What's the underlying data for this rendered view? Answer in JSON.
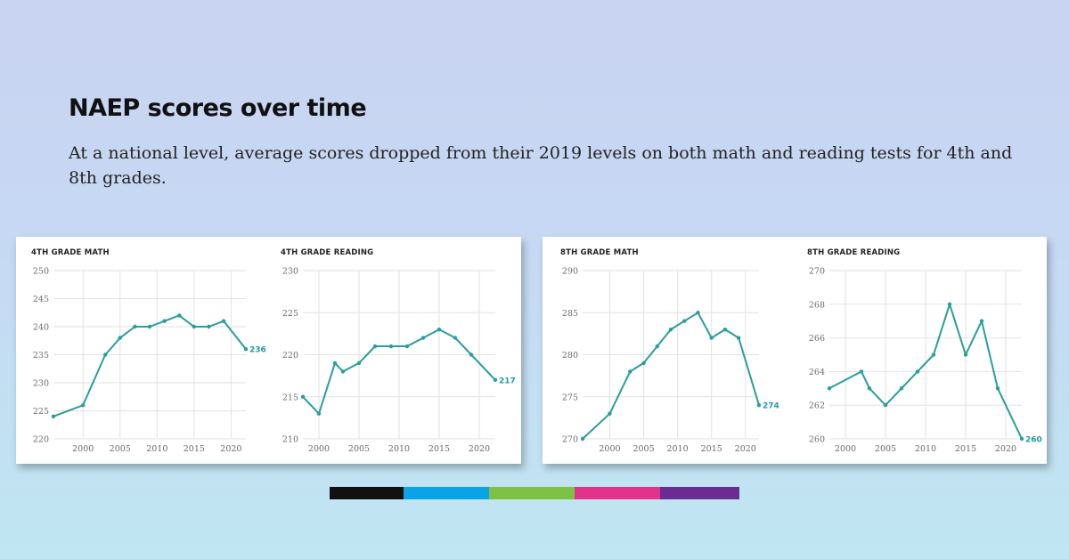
{
  "header": {
    "title": "NAEP scores over time",
    "subtitle": "At a national level, average scores dropped from their 2019 levels on both math and reading tests for 4th and 8th grades."
  },
  "colors": {
    "line": "#2a9d9e",
    "end_label": "#229b9b",
    "bar_segments": [
      "#111111",
      "#0aa4e6",
      "#7dc242",
      "#e2338c",
      "#6a2c91"
    ]
  },
  "chart_data": [
    {
      "type": "line",
      "title": "4TH GRADE MATH",
      "x": [
        1996,
        2000,
        2003,
        2005,
        2007,
        2009,
        2011,
        2013,
        2015,
        2017,
        2019,
        2022
      ],
      "values": [
        224,
        226,
        235,
        238,
        240,
        240,
        241,
        242,
        240,
        240,
        241,
        236
      ],
      "xlim": [
        1996,
        2022
      ],
      "ylim": [
        220,
        250
      ],
      "xticks": [
        2000,
        2005,
        2010,
        2015,
        2020
      ],
      "yticks": [
        220,
        225,
        230,
        235,
        240,
        245,
        250
      ],
      "end_label": "236",
      "grid": true
    },
    {
      "type": "line",
      "title": "4TH GRADE READING",
      "x": [
        1998,
        2000,
        2002,
        2003,
        2005,
        2007,
        2009,
        2011,
        2013,
        2015,
        2017,
        2019,
        2022
      ],
      "values": [
        215,
        213,
        219,
        218,
        219,
        221,
        221,
        221,
        222,
        223,
        222,
        220,
        217
      ],
      "xlim": [
        1998,
        2022
      ],
      "ylim": [
        210,
        230
      ],
      "xticks": [
        2000,
        2005,
        2010,
        2015,
        2020
      ],
      "yticks": [
        210,
        215,
        220,
        225,
        230
      ],
      "end_label": "217",
      "grid": true
    },
    {
      "type": "line",
      "title": "8TH GRADE MATH",
      "x": [
        1996,
        2000,
        2003,
        2005,
        2007,
        2009,
        2011,
        2013,
        2015,
        2017,
        2019,
        2022
      ],
      "values": [
        270,
        273,
        278,
        279,
        281,
        283,
        284,
        285,
        282,
        283,
        282,
        274
      ],
      "xlim": [
        1996,
        2022
      ],
      "ylim": [
        270,
        290
      ],
      "xticks": [
        2000,
        2005,
        2010,
        2015,
        2020
      ],
      "yticks": [
        270,
        275,
        280,
        285,
        290
      ],
      "end_label": "274",
      "grid": true
    },
    {
      "type": "line",
      "title": "8TH GRADE READING",
      "x": [
        1998,
        2002,
        2003,
        2005,
        2007,
        2009,
        2011,
        2013,
        2015,
        2017,
        2019,
        2022
      ],
      "values": [
        263,
        264,
        263,
        262,
        263,
        264,
        265,
        268,
        265,
        267,
        263,
        260
      ],
      "xlim": [
        1998,
        2022
      ],
      "ylim": [
        260,
        270
      ],
      "xticks": [
        2000,
        2005,
        2010,
        2015,
        2020
      ],
      "yticks": [
        260,
        262,
        264,
        266,
        268,
        270
      ],
      "end_label": "260",
      "grid": true
    }
  ]
}
